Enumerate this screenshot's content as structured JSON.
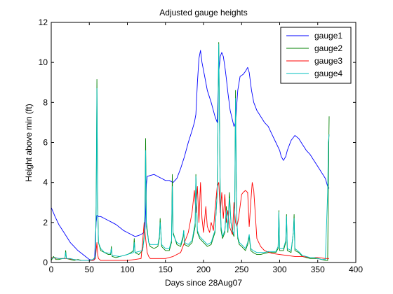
{
  "chart_data": {
    "type": "line",
    "title": "Adjusted gauge heights",
    "xlabel": "Days since 28Aug07",
    "ylabel": "Height above min (ft)",
    "xlim": [
      0,
      400
    ],
    "ylim": [
      0,
      12
    ],
    "xticks": [
      0,
      50,
      100,
      150,
      200,
      250,
      300,
      350,
      400
    ],
    "yticks": [
      0,
      2,
      4,
      6,
      8,
      10,
      12
    ],
    "xtick_labels": [
      "0",
      "50",
      "100",
      "150",
      "200",
      "250",
      "300",
      "350",
      "400"
    ],
    "ytick_labels": [
      "0",
      "2",
      "4",
      "6",
      "8",
      "10",
      "12"
    ],
    "grid": false,
    "legend_position": "top-right",
    "series": [
      {
        "name": "gauge1",
        "color": "#0000ff",
        "x": [
          0,
          5,
          10,
          15,
          20,
          25,
          30,
          35,
          40,
          45,
          50,
          55,
          57,
          58,
          59,
          60,
          61,
          62,
          65,
          70,
          75,
          80,
          85,
          90,
          95,
          100,
          105,
          110,
          115,
          120,
          123,
          124,
          125,
          126,
          130,
          135,
          140,
          145,
          150,
          155,
          160,
          165,
          170,
          175,
          180,
          185,
          188,
          190,
          192,
          194,
          196,
          198,
          200,
          202,
          205,
          210,
          215,
          218,
          220,
          222,
          224,
          226,
          228,
          230,
          232,
          235,
          240,
          242,
          245,
          248,
          252,
          255,
          258,
          260,
          263,
          266,
          270,
          275,
          280,
          285,
          290,
          295,
          300,
          302,
          305,
          308,
          310,
          315,
          320,
          325,
          330,
          335,
          340,
          345,
          350,
          355,
          360,
          363,
          365
        ],
        "y": [
          2.75,
          2.3,
          1.9,
          1.6,
          1.3,
          1.0,
          0.8,
          0.6,
          0.45,
          0.3,
          0.15,
          0.1,
          0.15,
          1.2,
          2.0,
          2.35,
          2.35,
          2.3,
          2.3,
          2.2,
          2.1,
          2.0,
          1.9,
          1.75,
          1.6,
          1.5,
          1.4,
          1.3,
          1.35,
          1.45,
          1.55,
          2.5,
          3.9,
          4.3,
          4.35,
          4.4,
          4.3,
          4.2,
          4.1,
          4.1,
          4.0,
          4.2,
          4.7,
          5.3,
          6.0,
          6.6,
          7.0,
          7.4,
          9.0,
          10.2,
          10.6,
          10.0,
          9.6,
          9.2,
          8.6,
          8.0,
          7.3,
          7.0,
          9.5,
          10.3,
          10.5,
          10.3,
          9.8,
          9.2,
          8.5,
          7.6,
          6.8,
          7.0,
          8.6,
          9.3,
          9.4,
          9.55,
          9.75,
          9.5,
          8.6,
          8.0,
          7.6,
          7.3,
          7.0,
          6.8,
          6.4,
          6.0,
          5.6,
          5.3,
          5.1,
          5.3,
          5.6,
          6.1,
          6.35,
          6.2,
          5.9,
          5.6,
          5.4,
          5.1,
          4.8,
          4.5,
          4.2,
          3.8,
          3.7
        ]
      },
      {
        "name": "gauge2",
        "color": "#008000",
        "x": [
          0,
          3,
          6,
          10,
          15,
          18,
          19,
          20,
          25,
          30,
          35,
          40,
          45,
          50,
          55,
          58,
          59,
          60,
          61,
          62,
          65,
          70,
          75,
          78,
          79,
          80,
          85,
          90,
          95,
          100,
          105,
          108,
          109,
          110,
          115,
          120,
          122,
          123,
          124,
          125,
          128,
          130,
          135,
          140,
          142,
          143,
          144,
          145,
          150,
          155,
          158,
          159,
          160,
          165,
          170,
          173,
          174,
          175,
          180,
          185,
          189,
          190,
          191,
          192,
          195,
          200,
          205,
          210,
          215,
          218,
          219,
          220,
          221,
          222,
          223,
          225,
          228,
          230,
          232,
          234,
          236,
          238,
          240,
          241,
          242,
          243,
          244,
          245,
          247,
          250,
          255,
          258,
          260,
          262,
          265,
          270,
          275,
          280,
          285,
          290,
          295,
          298,
          299,
          300,
          305,
          308,
          309,
          310,
          315,
          318,
          319,
          320,
          325,
          330,
          335,
          340,
          345,
          350,
          355,
          360,
          363,
          364,
          365
        ],
        "y": [
          0.1,
          0.3,
          0.15,
          0.15,
          0.2,
          0.2,
          0.6,
          0.2,
          0.15,
          0.1,
          0.15,
          0.1,
          0.1,
          0.1,
          0.15,
          0.3,
          3.0,
          9.15,
          3.0,
          1.0,
          0.6,
          0.5,
          0.4,
          0.4,
          0.8,
          0.3,
          0.25,
          0.3,
          0.35,
          0.4,
          0.5,
          0.6,
          1.2,
          0.5,
          0.4,
          0.6,
          1.3,
          2.5,
          6.2,
          2.0,
          1.0,
          0.8,
          0.7,
          0.8,
          1.2,
          2.2,
          1.5,
          0.8,
          0.6,
          0.6,
          1.0,
          4.4,
          1.5,
          0.9,
          0.8,
          1.2,
          1.6,
          0.9,
          0.8,
          1.0,
          1.8,
          4.4,
          3.0,
          1.5,
          1.2,
          1.0,
          0.8,
          0.9,
          1.5,
          3.5,
          7.0,
          11.0,
          7.0,
          3.0,
          1.6,
          1.2,
          1.5,
          2.8,
          1.5,
          3.5,
          2.0,
          1.5,
          1.3,
          2.5,
          8.6,
          4.0,
          2.0,
          1.2,
          0.9,
          0.8,
          0.6,
          0.9,
          1.3,
          0.6,
          0.5,
          0.4,
          0.4,
          0.45,
          0.5,
          0.5,
          0.5,
          0.7,
          2.6,
          0.6,
          0.6,
          1.0,
          2.4,
          0.6,
          0.5,
          1.5,
          2.4,
          0.6,
          0.5,
          0.3,
          0.25,
          0.2,
          0.2,
          0.2,
          0.15,
          0.1,
          0.1,
          4.0,
          7.3
        ]
      },
      {
        "name": "gauge3",
        "color": "#ff0000",
        "x": [
          0,
          10,
          20,
          30,
          40,
          50,
          55,
          58,
          60,
          61,
          62,
          65,
          70,
          80,
          90,
          100,
          110,
          118,
          120,
          122,
          124,
          126,
          128,
          130,
          140,
          150,
          160,
          170,
          180,
          185,
          188,
          190,
          192,
          194,
          196,
          198,
          200,
          203,
          205,
          208,
          210,
          213,
          215,
          218,
          220,
          222,
          224,
          226,
          228,
          230,
          232,
          234,
          236,
          238,
          240,
          242,
          244,
          246,
          248,
          250,
          252,
          255,
          258,
          260,
          262,
          264,
          266,
          270,
          275,
          280,
          290,
          300,
          310,
          320,
          330,
          340,
          350,
          360,
          365
        ],
        "y": [
          0.25,
          0.2,
          0.2,
          0.15,
          0.1,
          0.1,
          0.1,
          0.2,
          1.0,
          0.4,
          0.2,
          0.1,
          0.1,
          0.1,
          0.1,
          0.1,
          0.15,
          0.2,
          1.0,
          2.0,
          1.2,
          0.5,
          0.3,
          0.2,
          0.2,
          0.2,
          0.3,
          0.5,
          1.5,
          2.5,
          3.6,
          2.5,
          3.8,
          2.0,
          4.0,
          2.2,
          1.5,
          2.8,
          1.8,
          1.5,
          2.0,
          1.6,
          2.6,
          3.8,
          4.0,
          2.5,
          3.5,
          2.2,
          3.4,
          2.0,
          2.6,
          1.8,
          1.6,
          1.4,
          3.0,
          2.0,
          1.8,
          2.2,
          2.8,
          3.4,
          3.5,
          3.6,
          3.5,
          1.8,
          3.0,
          4.0,
          3.6,
          1.2,
          0.8,
          0.6,
          0.45,
          0.4,
          0.35,
          0.3,
          0.3,
          0.25,
          0.25,
          0.2,
          0.2
        ]
      },
      {
        "name": "gauge4",
        "color": "#00bfbf",
        "x": [
          0,
          5,
          10,
          15,
          18,
          19,
          20,
          25,
          30,
          40,
          50,
          55,
          58,
          59,
          60,
          61,
          62,
          65,
          70,
          78,
          79,
          80,
          90,
          100,
          108,
          109,
          110,
          120,
          122,
          123,
          124,
          125,
          128,
          130,
          140,
          142,
          143,
          144,
          145,
          150,
          155,
          158,
          159,
          160,
          165,
          170,
          173,
          174,
          175,
          180,
          185,
          189,
          190,
          191,
          192,
          195,
          200,
          205,
          210,
          215,
          218,
          219,
          220,
          221,
          222,
          223,
          225,
          228,
          230,
          232,
          234,
          236,
          238,
          240,
          241,
          242,
          243,
          244,
          245,
          247,
          250,
          255,
          258,
          260,
          262,
          265,
          270,
          275,
          280,
          285,
          290,
          295,
          298,
          299,
          300,
          305,
          308,
          309,
          310,
          315,
          318,
          319,
          320,
          325,
          330,
          335,
          340,
          345,
          350,
          355,
          360,
          363,
          364,
          365
        ],
        "y": [
          0.2,
          0.25,
          0.2,
          0.2,
          0.2,
          0.5,
          0.2,
          0.2,
          0.15,
          0.1,
          0.1,
          0.15,
          0.3,
          2.5,
          8.7,
          2.8,
          1.0,
          0.7,
          0.5,
          0.45,
          0.7,
          0.35,
          0.3,
          0.4,
          0.5,
          1.0,
          0.5,
          0.6,
          1.2,
          2.4,
          5.6,
          1.8,
          1.0,
          0.9,
          0.9,
          1.3,
          2.0,
          1.5,
          0.9,
          0.7,
          0.7,
          1.1,
          3.8,
          1.4,
          1.0,
          0.9,
          1.3,
          1.6,
          1.0,
          0.9,
          1.1,
          2.0,
          4.3,
          2.8,
          1.6,
          1.3,
          1.1,
          0.9,
          1.0,
          1.6,
          3.4,
          7.2,
          10.9,
          6.8,
          3.2,
          1.8,
          1.3,
          1.6,
          2.6,
          1.6,
          3.2,
          2.0,
          1.6,
          1.4,
          2.6,
          8.2,
          4.0,
          2.0,
          1.3,
          1.0,
          0.9,
          0.7,
          1.0,
          1.4,
          0.7,
          0.6,
          0.5,
          0.5,
          0.5,
          0.55,
          0.55,
          0.55,
          0.8,
          2.5,
          0.7,
          0.7,
          1.1,
          2.3,
          0.7,
          0.6,
          1.5,
          2.2,
          0.7,
          0.55,
          0.35,
          0.3,
          0.25,
          0.25,
          0.2,
          0.15,
          0.15,
          3.5,
          6.0,
          6.4
        ]
      }
    ]
  }
}
